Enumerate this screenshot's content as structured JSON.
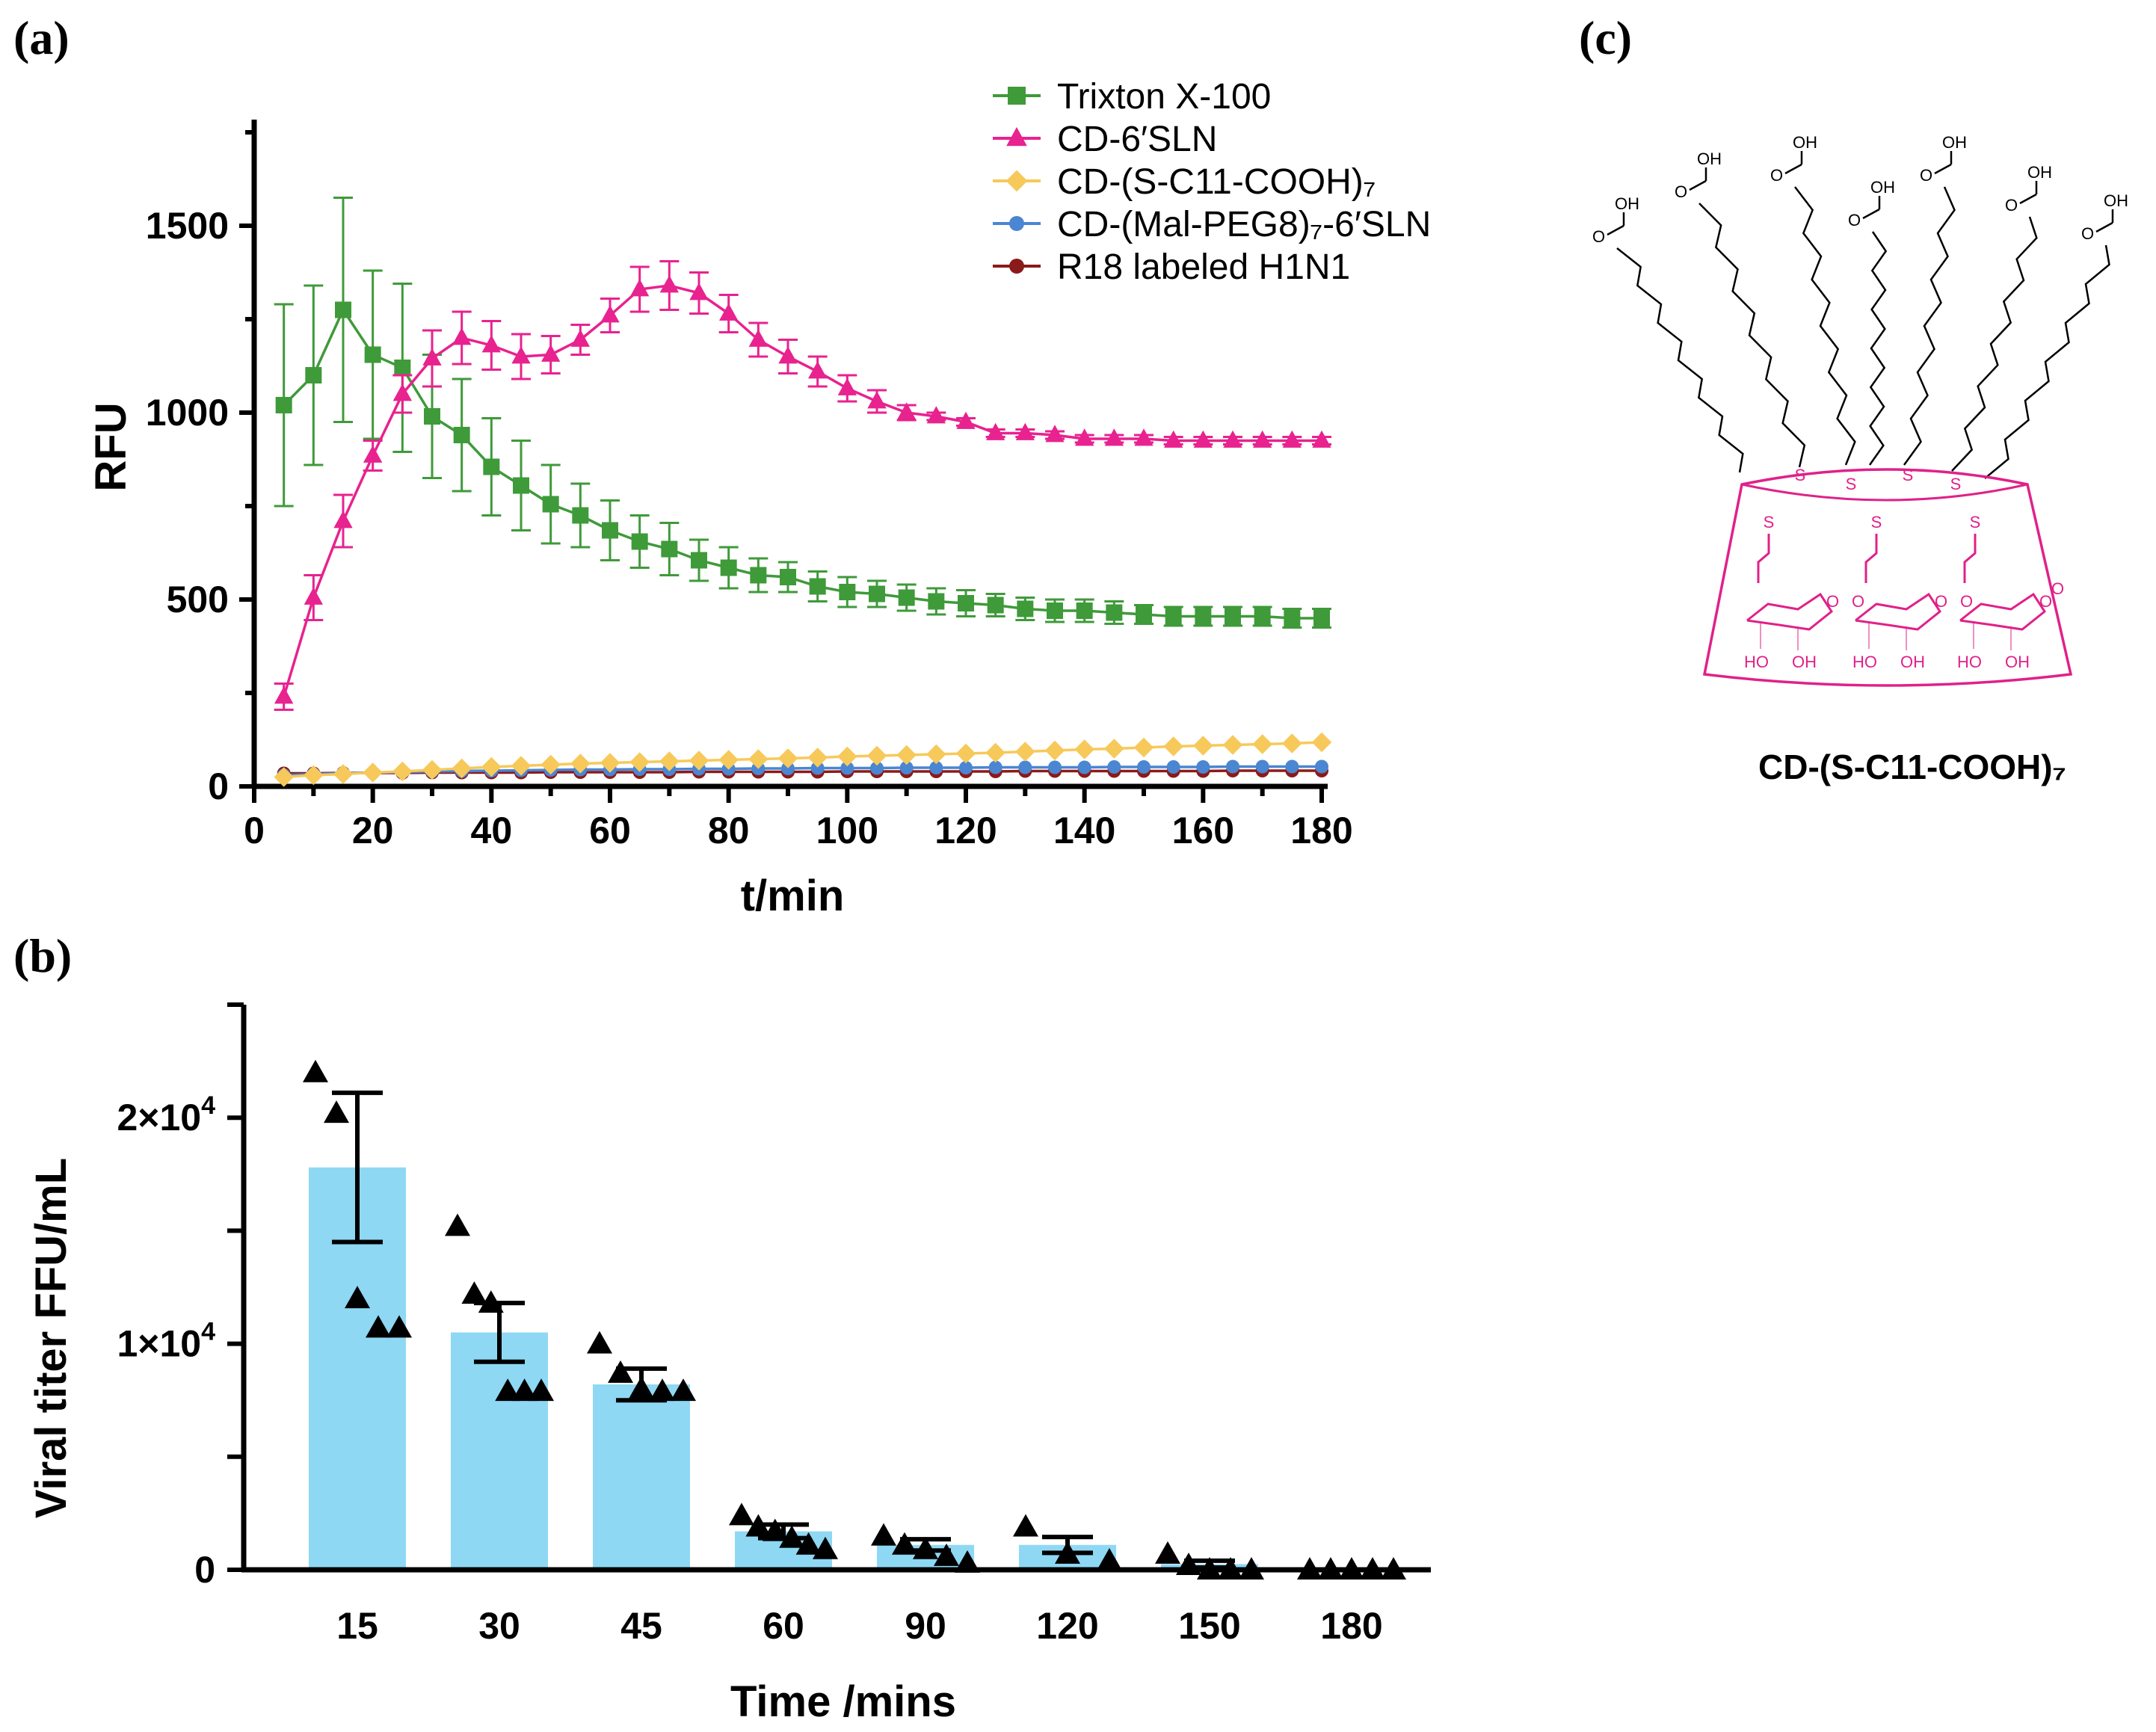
{
  "panels": {
    "a": "(a)",
    "b": "(b)",
    "c": "(c)"
  },
  "colors": {
    "triton": "#3f9a3a",
    "sln": "#e8228f",
    "cooh": "#f7c95a",
    "peg": "#4a86d2",
    "r18": "#8b1a1a",
    "bar": "#8ed8f4",
    "cd_ring": "#e0218a"
  },
  "chart_data": [
    {
      "id": "a",
      "type": "line",
      "xlabel": "t/min",
      "ylabel": "RFU",
      "xlim": [
        0,
        180
      ],
      "ylim": [
        0,
        1800
      ],
      "xticks": [
        0,
        20,
        40,
        60,
        80,
        100,
        120,
        140,
        160,
        180
      ],
      "yticks": [
        0,
        500,
        1000,
        1500
      ],
      "legend_position": "top-right",
      "x": [
        5,
        10,
        15,
        20,
        25,
        30,
        35,
        40,
        45,
        50,
        55,
        60,
        65,
        70,
        75,
        80,
        85,
        90,
        95,
        100,
        105,
        110,
        115,
        120,
        125,
        130,
        135,
        140,
        145,
        150,
        155,
        160,
        165,
        170,
        175,
        180
      ],
      "series": [
        {
          "name": "Trixton X-100",
          "marker": "square",
          "color_key": "triton",
          "values": [
            1020,
            1100,
            1275,
            1155,
            1120,
            990,
            940,
            855,
            805,
            755,
            725,
            685,
            655,
            635,
            605,
            585,
            565,
            560,
            535,
            520,
            515,
            505,
            495,
            490,
            485,
            475,
            470,
            470,
            465,
            460,
            455,
            455,
            455,
            455,
            450,
            450
          ],
          "errors": [
            270,
            240,
            300,
            225,
            225,
            165,
            150,
            130,
            120,
            105,
            85,
            80,
            70,
            70,
            55,
            55,
            45,
            40,
            40,
            40,
            35,
            35,
            35,
            35,
            30,
            30,
            30,
            30,
            30,
            25,
            25,
            25,
            25,
            25,
            25,
            25
          ]
        },
        {
          "name": "CD-6′SLN",
          "marker": "triangle",
          "color_key": "sln",
          "values": [
            240,
            505,
            710,
            885,
            1050,
            1145,
            1200,
            1180,
            1150,
            1155,
            1195,
            1260,
            1330,
            1340,
            1320,
            1265,
            1195,
            1150,
            1110,
            1065,
            1030,
            1000,
            990,
            975,
            945,
            945,
            940,
            930,
            930,
            930,
            925,
            925,
            925,
            925,
            925,
            925
          ],
          "errors": [
            35,
            60,
            70,
            40,
            50,
            75,
            70,
            65,
            60,
            50,
            40,
            45,
            60,
            65,
            55,
            50,
            45,
            45,
            40,
            35,
            30,
            20,
            10,
            10,
            10,
            10,
            10,
            10,
            10,
            10,
            10,
            10,
            10,
            10,
            10,
            10
          ]
        },
        {
          "name": "CD-(S-C11-COOH)₇",
          "marker": "diamond",
          "color_key": "cooh",
          "values": [
            25,
            30,
            33,
            37,
            40,
            44,
            48,
            52,
            55,
            58,
            61,
            63,
            65,
            67,
            69,
            71,
            73,
            75,
            77,
            80,
            82,
            84,
            86,
            88,
            90,
            93,
            96,
            99,
            101,
            104,
            107,
            109,
            111,
            113,
            115,
            118
          ],
          "errors": []
        },
        {
          "name": "CD-(Mal-PEG8)₇-6′SLN",
          "marker": "circle",
          "color_key": "peg",
          "values": [
            30,
            33,
            35,
            37,
            38,
            40,
            41,
            42,
            43,
            44,
            45,
            45,
            46,
            46,
            47,
            47,
            48,
            48,
            49,
            49,
            49,
            50,
            50,
            50,
            51,
            51,
            51,
            51,
            52,
            52,
            52,
            52,
            53,
            53,
            53,
            53
          ],
          "errors": []
        },
        {
          "name": "R18 labeled H1N1",
          "marker": "circle",
          "color_key": "r18",
          "values": [
            35,
            35,
            36,
            36,
            36,
            37,
            37,
            37,
            37,
            38,
            38,
            38,
            38,
            38,
            39,
            39,
            39,
            39,
            39,
            40,
            40,
            40,
            40,
            40,
            40,
            41,
            41,
            41,
            41,
            41,
            41,
            41,
            42,
            42,
            42,
            42
          ],
          "errors": []
        }
      ]
    },
    {
      "id": "b",
      "type": "bar",
      "xlabel": "Time /mins",
      "ylabel": "Viral titer FFU/mL",
      "ylim": [
        0,
        25000
      ],
      "ytick_labels": [
        {
          "value": 0,
          "base": "0",
          "exp": ""
        },
        {
          "value": 10000,
          "base": "1×10",
          "exp": "4"
        },
        {
          "value": 20000,
          "base": "2×10",
          "exp": "4"
        }
      ],
      "categories": [
        "15",
        "30",
        "45",
        "60",
        "90",
        "120",
        "150",
        "180"
      ],
      "values": [
        17800,
        10500,
        8200,
        1700,
        1100,
        1100,
        250,
        0
      ],
      "sem": [
        3300,
        1300,
        700,
        300,
        250,
        350,
        150,
        0
      ],
      "replicates": [
        [
          22000,
          20200,
          12000,
          10700,
          10700
        ],
        [
          15200,
          12200,
          11800,
          7900,
          7900,
          7900
        ],
        [
          10000,
          8700,
          8000,
          7900,
          7900
        ],
        [
          2400,
          1900,
          1700,
          1400,
          1100,
          900
        ],
        [
          1500,
          1100,
          900,
          600,
          300
        ],
        [
          1900,
          700,
          400
        ],
        [
          700,
          200,
          0,
          0,
          0
        ],
        [
          0,
          0,
          0,
          0,
          0
        ]
      ]
    }
  ],
  "structure": {
    "caption": "CD-(S-C11-COOH)₇",
    "labels": {
      "oh": "OH",
      "ho": "HO",
      "o": "O",
      "s": "S",
      "ho_ring": "HO",
      "oh_ring": "OH"
    }
  }
}
